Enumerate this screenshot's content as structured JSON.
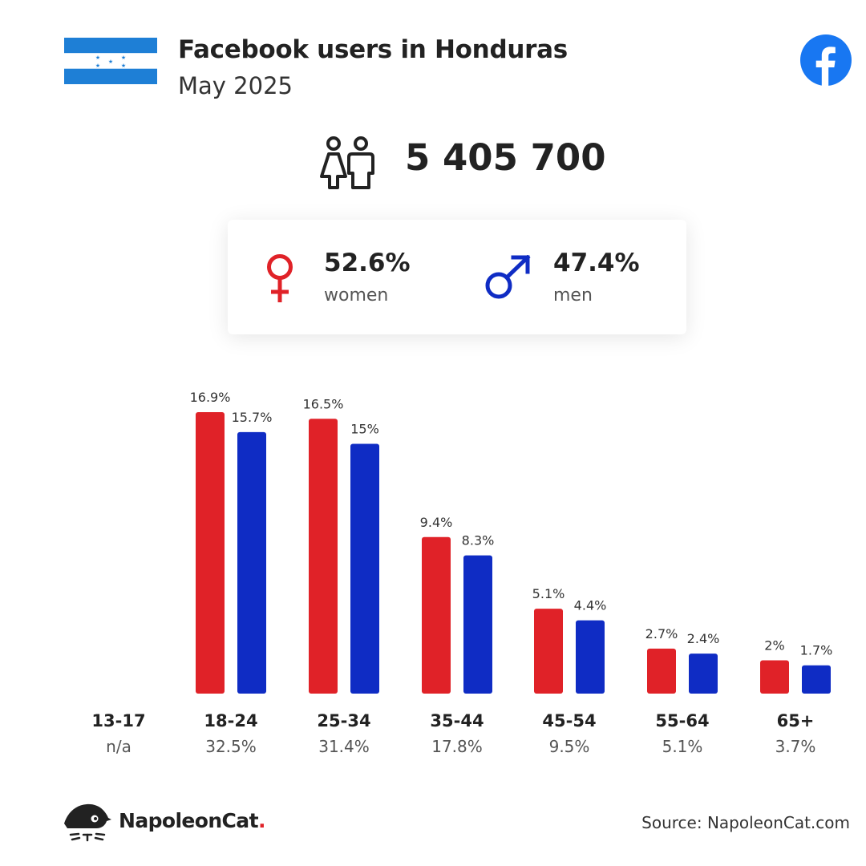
{
  "header": {
    "title": "Facebook users in Honduras",
    "subtitle": "May 2025",
    "flag_icon": "honduras-flag-icon",
    "logo_icon": "facebook-logo-icon"
  },
  "summary": {
    "total_users": "5 405 700",
    "icon": "people-icon"
  },
  "gender": {
    "women": {
      "pct": "52.6%",
      "label": "women",
      "icon": "female-symbol-icon",
      "color": "#e02228"
    },
    "men": {
      "pct": "47.4%",
      "label": "men",
      "icon": "male-symbol-icon",
      "color": "#0f2cc4"
    }
  },
  "chart_data": {
    "type": "bar",
    "categories": [
      "13-17",
      "18-24",
      "25-34",
      "35-44",
      "45-54",
      "55-64",
      "65+"
    ],
    "category_totals": [
      "n/a",
      "32.5%",
      "31.4%",
      "17.8%",
      "9.5%",
      "5.1%",
      "3.7%"
    ],
    "series": [
      {
        "key": "women",
        "color": "#e02228",
        "values": [
          null,
          16.9,
          16.5,
          9.4,
          5.1,
          2.7,
          2.0
        ],
        "labels": [
          "",
          "16.9%",
          "16.5%",
          "9.4%",
          "5.1%",
          "2.7%",
          "2%"
        ]
      },
      {
        "key": "men",
        "color": "#0f2cc4",
        "values": [
          null,
          15.7,
          15.0,
          8.3,
          4.4,
          2.4,
          1.7
        ],
        "labels": [
          "",
          "15.7%",
          "15%",
          "8.3%",
          "4.4%",
          "2.4%",
          "1.7%"
        ]
      }
    ],
    "ylim": [
      0,
      16.9
    ],
    "grid": false
  },
  "footer": {
    "brand_name": "NapoleonCat",
    "brand_dot": ".",
    "brand_icon": "napoleoncat-logo-icon",
    "source": "Source: NapoleonCat.com"
  }
}
